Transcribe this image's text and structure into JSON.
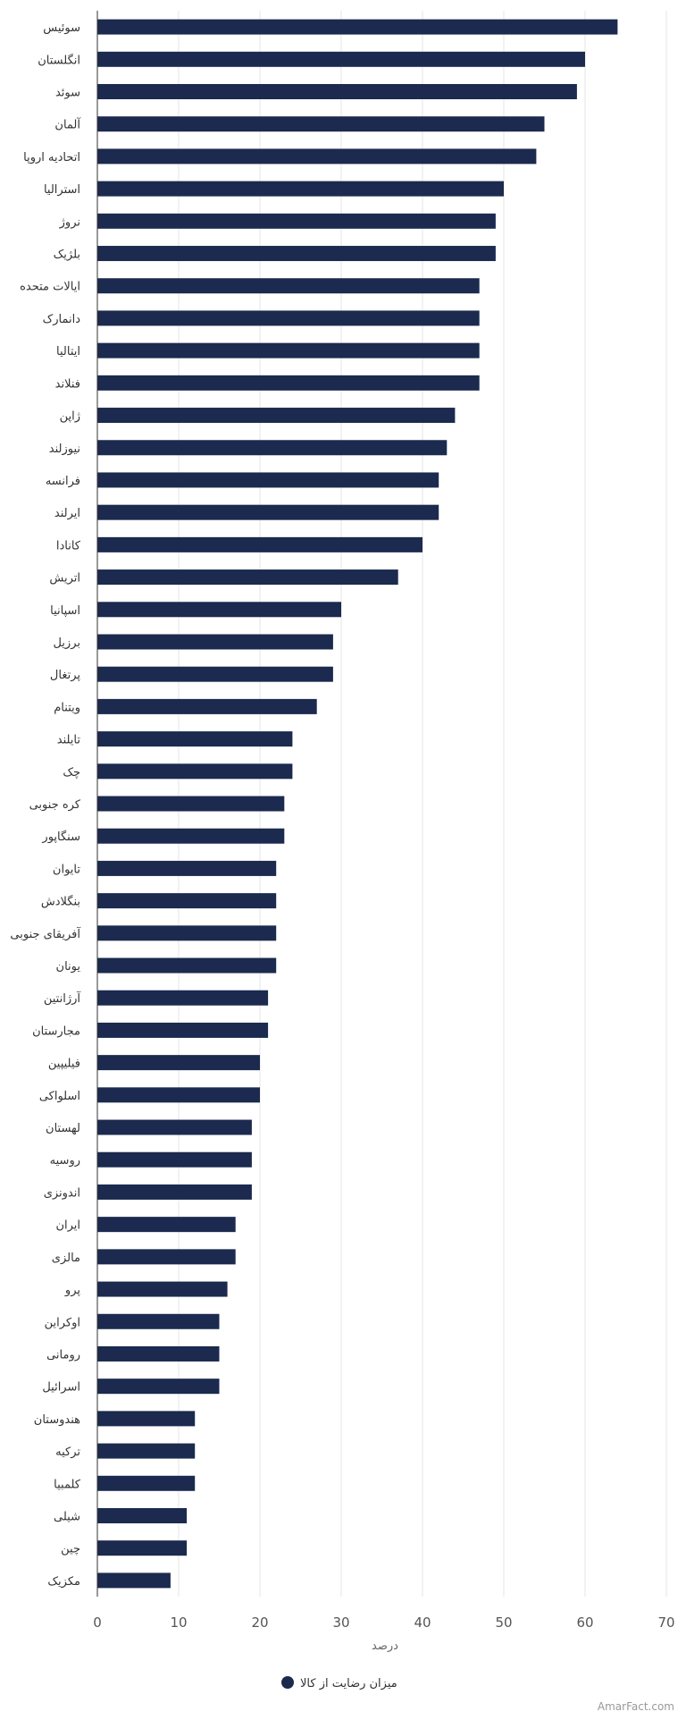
{
  "chart_data": {
    "type": "bar",
    "orientation": "horizontal",
    "categories": [
      "سوئیس",
      "انگلستان",
      "سوئد",
      "آلمان",
      "اتحادیه اروپا",
      "استرالیا",
      "نروژ",
      "بلژیک",
      "ایالات متحده",
      "دانمارک",
      "ایتالیا",
      "فنلاند",
      "ژاپن",
      "نیوزلند",
      "فرانسه",
      "ایرلند",
      "کانادا",
      "اتریش",
      "اسپانیا",
      "برزیل",
      "پرتغال",
      "ویتنام",
      "تایلند",
      "چک",
      "کره جنوبی",
      "سنگاپور",
      "تایوان",
      "بنگلادش",
      "آفریقای جنوبی",
      "یونان",
      "آرژانتین",
      "مجارستان",
      "فیلیپین",
      "اسلواکی",
      "لهستان",
      "روسیه",
      "اندونزی",
      "ایران",
      "مالزی",
      "پرو",
      "اوکراین",
      "رومانی",
      "اسرائیل",
      "هندوستان",
      "ترکیه",
      "کلمبیا",
      "شیلی",
      "چین",
      "مکزیک"
    ],
    "series": [
      {
        "name": "میزان رضایت از کالا",
        "values": [
          64,
          60,
          59,
          55,
          54,
          50,
          49,
          49,
          47,
          47,
          47,
          47,
          44,
          43,
          42,
          42,
          40,
          37,
          30,
          29,
          29,
          27,
          24,
          24,
          23,
          23,
          22,
          22,
          22,
          22,
          21,
          21,
          20,
          20,
          19,
          19,
          19,
          17,
          17,
          16,
          15,
          15,
          15,
          12,
          12,
          12,
          11,
          11,
          9
        ]
      }
    ],
    "xlabel": "درصد",
    "ylabel": "",
    "xlim": [
      0,
      70
    ],
    "ticks": [
      0,
      10,
      20,
      30,
      40,
      50,
      60,
      70
    ],
    "grid": true,
    "legend_position": "bottom-center"
  },
  "colors": {
    "bar": "#1b2a4e",
    "grid": "#e6e6e6",
    "axis": "#333333"
  },
  "credit": "AmarFact.com"
}
